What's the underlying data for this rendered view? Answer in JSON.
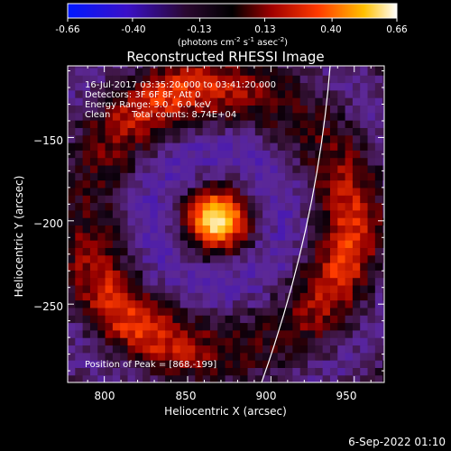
{
  "colorbar": {
    "ticks": [
      "-0.66",
      "-0.40",
      "-0.13",
      "0.13",
      "0.40",
      "0.66"
    ],
    "tick_values": [
      -0.66,
      -0.4,
      -0.13,
      0.13,
      0.4,
      0.66
    ],
    "range": [
      -0.66,
      0.66
    ],
    "units_main": "(photons cm",
    "units_sup1": "-2",
    "units_mid": " s",
    "units_sup2": "-1",
    "units_mid2": " asec",
    "units_sup3": "-2",
    "units_end": ")",
    "colors": [
      "#0000ff",
      "#4b0082",
      "#000000",
      "#8b0000",
      "#ff4500",
      "#ffd700",
      "#ffffff"
    ]
  },
  "chart_data": {
    "type": "heatmap",
    "title": "Reconstructed RHESSI Image",
    "xlabel": "Heliocentric X (arcsec)",
    "ylabel": "Heliocentric Y (arcsec)",
    "xlim": [
      778,
      968
    ],
    "ylim": [
      -297,
      -107
    ],
    "xticks": [
      800,
      850,
      900,
      950
    ],
    "xtick_labels": [
      "800",
      "850",
      "900",
      "950"
    ],
    "yticks": [
      -150,
      -200,
      -250
    ],
    "ytick_labels": [
      "−150",
      "−200",
      "−250"
    ],
    "peak": {
      "x": 868,
      "y": -199
    },
    "grid": false,
    "annotations": {
      "line1": "16-Jul-2017 03:35:20.000 to 03:41:20.000",
      "line2": "Detectors: 3F 6F 8F, Att 0",
      "line3": "Energy Range: 3.0 - 6.0 keV",
      "line4_a": "Clean",
      "line4_b": "Total counts: 8.74E+04",
      "peak_label": "Position of Peak = [868,-199]"
    }
  },
  "footer": {
    "date": "6-Sep-2022 01:10"
  }
}
